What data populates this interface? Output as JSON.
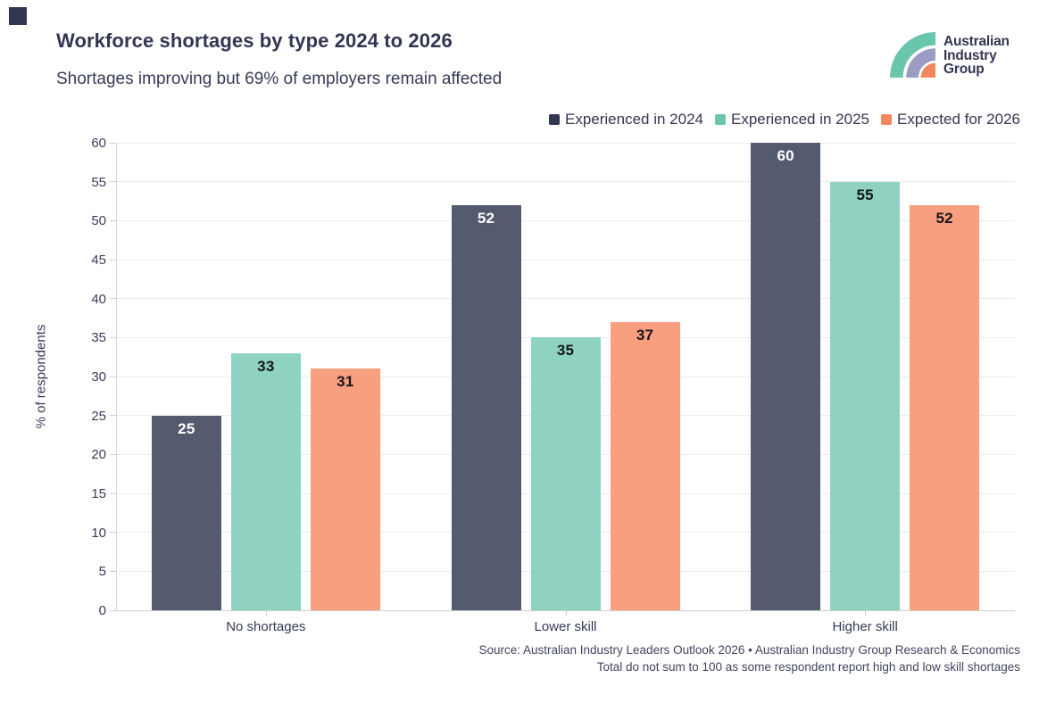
{
  "header": {
    "title": "Workforce shortages by type 2024 to 2026",
    "subtitle": "Shortages improving but 69% of employers remain affected"
  },
  "logo": {
    "name": "Australian Industry Group",
    "line1": "Australian",
    "line2": "Industry",
    "line3": "Group",
    "mark_colors": {
      "outer": "#6ac5ad",
      "middle": "#9b9cc3",
      "inner": "#f5875f"
    }
  },
  "brand": {
    "corner_square_color": "#333651",
    "text_color": "#333651"
  },
  "chart_data": {
    "type": "bar",
    "title": "Workforce shortages by type 2024 to 2026",
    "subtitle": "Shortages improving but 69% of employers remain affected",
    "categories": [
      "No shortages",
      "Lower skill",
      "Higher skill"
    ],
    "series": [
      {
        "name": "Experienced in 2024",
        "color": "#333651",
        "bar_color": "#555b6e",
        "label_color": "#ffffff",
        "values": [
          25,
          52,
          60
        ]
      },
      {
        "name": "Experienced in 2025",
        "color": "#6ac5ad",
        "bar_color": "#8fd2c1",
        "label_color": "#15151a",
        "values": [
          33,
          35,
          55
        ]
      },
      {
        "name": "Expected for 2026",
        "color": "#f5875f",
        "bar_color": "#f89f7f",
        "label_color": "#15151a",
        "values": [
          31,
          37,
          52
        ]
      }
    ],
    "xlabel": "",
    "ylabel": "% of respondents",
    "ylim": [
      0,
      60
    ],
    "ytick_step": 5,
    "grid": true,
    "legend_position": "top-right",
    "value_labels": true
  },
  "source": {
    "line1": "Source: Australian Industry Leaders Outlook 2026 • Australian Industry Group Research & Economics",
    "line2": "Total do not sum to 100 as some respondent report high and low skill shortages"
  }
}
